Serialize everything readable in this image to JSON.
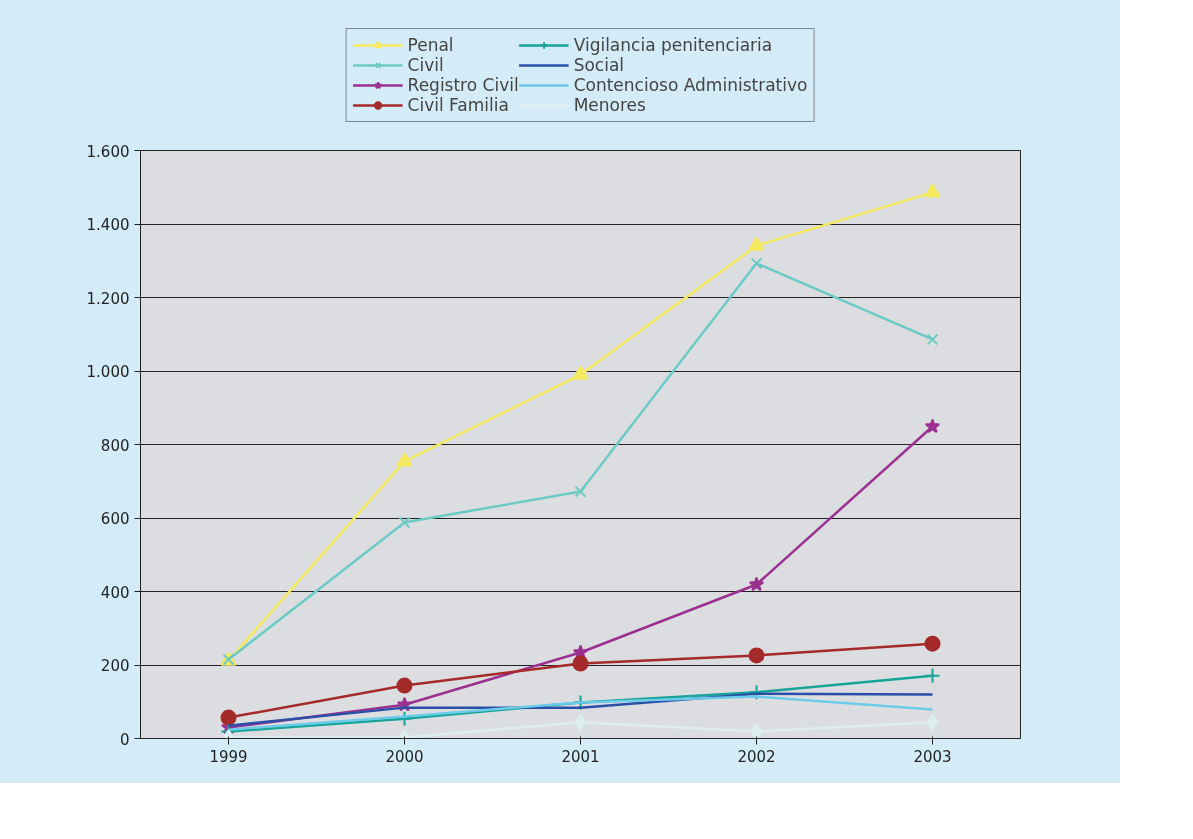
{
  "chart_data": {
    "type": "line",
    "categories": [
      "1999",
      "2000",
      "2001",
      "2002",
      "2003"
    ],
    "ylim": [
      0,
      1600
    ],
    "yticks": [
      0,
      200,
      400,
      600,
      800,
      {
        "value": 1000,
        "label": "1.000"
      },
      {
        "value": 1200,
        "label": "1.200"
      },
      {
        "value": 1400,
        "label": "1.400"
      },
      {
        "value": 1600,
        "label": "1.600"
      }
    ],
    "grid": "y",
    "legend": "top",
    "line_style": "solid",
    "series": [
      {
        "name": "Penal",
        "color": "#f5e960",
        "marker": "triangle",
        "values": [
          212,
          754,
          990,
          1341,
          1486
        ]
      },
      {
        "name": "Civil",
        "color": "#6ccbc6",
        "marker": "x",
        "values": [
          215,
          588,
          672,
          1293,
          1086
        ]
      },
      {
        "name": "Registro Civil",
        "color": "#9b3090",
        "marker": "star",
        "values": [
          30,
          92,
          234,
          419,
          849
        ]
      },
      {
        "name": "Civil Familia",
        "color": "#a52a2a",
        "marker": "circle",
        "values": [
          57,
          144,
          204,
          226,
          258
        ]
      },
      {
        "name": "Vigilancia penitenciaria",
        "color": "#17a398",
        "marker": "cross",
        "values": [
          19,
          54,
          98,
          126,
          171
        ]
      },
      {
        "name": "Social",
        "color": "#2a4fa8",
        "marker": "none",
        "values": [
          35,
          84,
          84,
          122,
          120
        ]
      },
      {
        "name": "Contencioso Administrativo",
        "color": "#6bcbe8",
        "marker": "none",
        "values": [
          24,
          60,
          98,
          114,
          79
        ]
      },
      {
        "name": "Menores",
        "color": "#dceeee",
        "marker": "diamond",
        "values": [
          3,
          3,
          44,
          19,
          44
        ]
      }
    ]
  }
}
